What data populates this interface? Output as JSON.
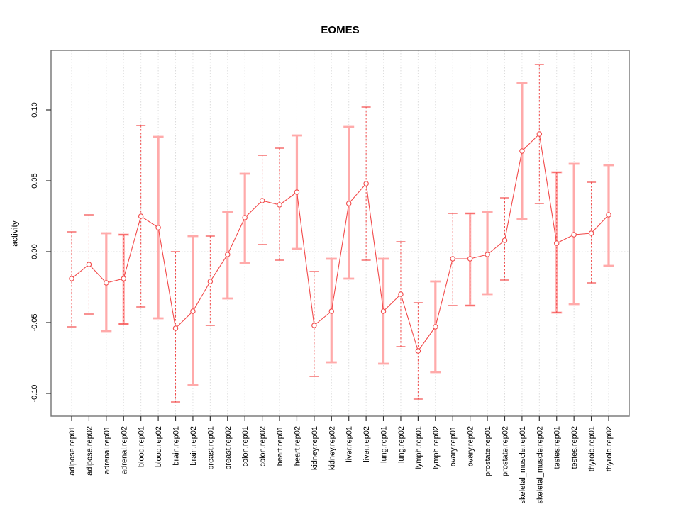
{
  "chart_data": {
    "type": "line",
    "subtype": "points-with-error-bars",
    "title": "EOMES",
    "xlabel": "",
    "ylabel": "activity",
    "ylim": [
      -0.116,
      0.142
    ],
    "grid": "dotted-vertical-per-category-plus-zero-line",
    "legend": "none",
    "y_ticks": [
      {
        "value": -0.1,
        "label": "-0.10"
      },
      {
        "value": -0.05,
        "label": "-0.05"
      },
      {
        "value": 0.0,
        "label": "0.00"
      },
      {
        "value": 0.05,
        "label": "0.05"
      },
      {
        "value": 0.1,
        "label": "0.10"
      }
    ],
    "categories": [
      "adipose.rep01",
      "adipose.rep02",
      "adrenal.rep01",
      "adrenal.rep02",
      "blood.rep01",
      "blood.rep02",
      "brain.rep01",
      "brain.rep02",
      "breast.rep01",
      "breast.rep02",
      "colon.rep01",
      "colon.rep02",
      "heart.rep01",
      "heart.rep02",
      "kidney.rep01",
      "kidney.rep02",
      "liver.rep01",
      "liver.rep02",
      "lung.rep01",
      "lung.rep02",
      "lymph.rep01",
      "lymph.rep02",
      "ovary.rep01",
      "ovary.rep02",
      "prostate.rep01",
      "prostate.rep02",
      "skeletal_muscle.rep01",
      "skeletal_muscle.rep02",
      "testes.rep01",
      "testes.rep02",
      "thyroid.rep01",
      "thyroid.rep02"
    ],
    "points": [
      {
        "label": "adipose.rep01",
        "value": -0.019,
        "lo": -0.053,
        "hi": 0.014,
        "style": "dashed"
      },
      {
        "label": "adipose.rep02",
        "value": -0.009,
        "lo": -0.044,
        "hi": 0.026,
        "style": "dashed"
      },
      {
        "label": "adrenal.rep01",
        "value": -0.022,
        "lo": -0.056,
        "hi": 0.013,
        "style": "solid"
      },
      {
        "label": "adrenal.rep02",
        "value": -0.019,
        "lo": -0.051,
        "hi": 0.012,
        "style": "both"
      },
      {
        "label": "blood.rep01",
        "value": 0.025,
        "lo": -0.039,
        "hi": 0.089,
        "style": "dashed"
      },
      {
        "label": "blood.rep02",
        "value": 0.017,
        "lo": -0.047,
        "hi": 0.081,
        "style": "solid"
      },
      {
        "label": "brain.rep01",
        "value": -0.054,
        "lo": -0.106,
        "hi": 0.0,
        "style": "dashed"
      },
      {
        "label": "brain.rep02",
        "value": -0.042,
        "lo": -0.094,
        "hi": 0.011,
        "style": "solid"
      },
      {
        "label": "breast.rep01",
        "value": -0.021,
        "lo": -0.052,
        "hi": 0.011,
        "style": "dashed"
      },
      {
        "label": "breast.rep02",
        "value": -0.002,
        "lo": -0.033,
        "hi": 0.028,
        "style": "solid"
      },
      {
        "label": "colon.rep01",
        "value": 0.024,
        "lo": -0.008,
        "hi": 0.055,
        "style": "solid"
      },
      {
        "label": "colon.rep02",
        "value": 0.036,
        "lo": 0.005,
        "hi": 0.068,
        "style": "dashed"
      },
      {
        "label": "heart.rep01",
        "value": 0.033,
        "lo": -0.006,
        "hi": 0.073,
        "style": "dashed"
      },
      {
        "label": "heart.rep02",
        "value": 0.042,
        "lo": 0.002,
        "hi": 0.082,
        "style": "solid"
      },
      {
        "label": "kidney.rep01",
        "value": -0.052,
        "lo": -0.088,
        "hi": -0.014,
        "style": "dashed"
      },
      {
        "label": "kidney.rep02",
        "value": -0.042,
        "lo": -0.078,
        "hi": -0.005,
        "style": "solid"
      },
      {
        "label": "liver.rep01",
        "value": 0.034,
        "lo": -0.019,
        "hi": 0.088,
        "style": "solid"
      },
      {
        "label": "liver.rep02",
        "value": 0.048,
        "lo": -0.006,
        "hi": 0.102,
        "style": "dashed"
      },
      {
        "label": "lung.rep01",
        "value": -0.042,
        "lo": -0.079,
        "hi": -0.005,
        "style": "solid"
      },
      {
        "label": "lung.rep02",
        "value": -0.03,
        "lo": -0.067,
        "hi": 0.007,
        "style": "dashed"
      },
      {
        "label": "lymph.rep01",
        "value": -0.07,
        "lo": -0.104,
        "hi": -0.036,
        "style": "dashed"
      },
      {
        "label": "lymph.rep02",
        "value": -0.053,
        "lo": -0.085,
        "hi": -0.021,
        "style": "solid"
      },
      {
        "label": "ovary.rep01",
        "value": -0.005,
        "lo": -0.038,
        "hi": 0.027,
        "style": "dashed"
      },
      {
        "label": "ovary.rep02",
        "value": -0.005,
        "lo": -0.038,
        "hi": 0.027,
        "style": "both"
      },
      {
        "label": "prostate.rep01",
        "value": -0.002,
        "lo": -0.03,
        "hi": 0.028,
        "style": "solid"
      },
      {
        "label": "prostate.rep02",
        "value": 0.008,
        "lo": -0.02,
        "hi": 0.038,
        "style": "dashed"
      },
      {
        "label": "skeletal_muscle.rep01",
        "value": 0.071,
        "lo": 0.023,
        "hi": 0.119,
        "style": "solid"
      },
      {
        "label": "skeletal_muscle.rep02",
        "value": 0.083,
        "lo": 0.034,
        "hi": 0.132,
        "style": "dashed"
      },
      {
        "label": "testes.rep01",
        "value": 0.006,
        "lo": -0.043,
        "hi": 0.056,
        "style": "both"
      },
      {
        "label": "testes.rep02",
        "value": 0.012,
        "lo": -0.037,
        "hi": 0.062,
        "style": "solid"
      },
      {
        "label": "thyroid.rep01",
        "value": 0.013,
        "lo": -0.022,
        "hi": 0.049,
        "style": "dashed"
      },
      {
        "label": "thyroid.rep02",
        "value": 0.026,
        "lo": -0.01,
        "hi": 0.061,
        "style": "solid"
      }
    ],
    "colors": {
      "series": "#f24a4a",
      "band": "#ffaaaa",
      "grid": "#dcdcdc",
      "frame": "#737373",
      "tick": "#333333",
      "text": "#000000",
      "background": "#ffffff"
    }
  }
}
